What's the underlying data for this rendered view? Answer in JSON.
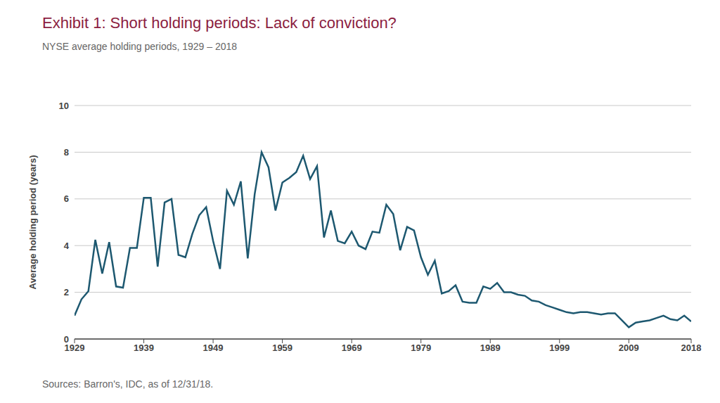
{
  "chart_data": {
    "type": "line",
    "title": "Exhibit 1: Short holding periods: Lack of conviction?",
    "subtitle": "NYSE average holding periods, 1929 – 2018",
    "y_label": "Average holding period (years)",
    "source": "Sources: Barron's, IDC, as of 12/31/18.",
    "x": [
      1929,
      1930,
      1931,
      1932,
      1933,
      1934,
      1935,
      1936,
      1937,
      1938,
      1939,
      1940,
      1941,
      1942,
      1943,
      1944,
      1945,
      1946,
      1947,
      1948,
      1949,
      1950,
      1951,
      1952,
      1953,
      1954,
      1955,
      1956,
      1957,
      1958,
      1959,
      1960,
      1961,
      1962,
      1963,
      1964,
      1965,
      1966,
      1967,
      1968,
      1969,
      1970,
      1971,
      1972,
      1973,
      1974,
      1975,
      1976,
      1977,
      1978,
      1979,
      1980,
      1981,
      1982,
      1983,
      1984,
      1985,
      1986,
      1987,
      1988,
      1989,
      1990,
      1991,
      1992,
      1993,
      1994,
      1995,
      1996,
      1997,
      1998,
      1999,
      2000,
      2001,
      2002,
      2003,
      2004,
      2005,
      2006,
      2007,
      2008,
      2009,
      2010,
      2011,
      2012,
      2013,
      2014,
      2015,
      2016,
      2017,
      2018
    ],
    "values": [
      1.0,
      1.7,
      2.05,
      4.25,
      2.8,
      4.15,
      2.25,
      2.2,
      3.9,
      3.9,
      6.05,
      6.05,
      3.1,
      5.85,
      6.0,
      3.6,
      3.5,
      4.5,
      5.3,
      5.65,
      4.2,
      3.0,
      6.35,
      5.75,
      6.75,
      3.45,
      6.2,
      8.0,
      7.35,
      5.5,
      6.7,
      6.9,
      7.15,
      7.85,
      6.85,
      7.4,
      4.35,
      5.5,
      4.2,
      4.1,
      4.6,
      4.0,
      3.85,
      4.6,
      4.55,
      5.75,
      5.35,
      3.8,
      4.8,
      4.65,
      3.5,
      2.75,
      3.35,
      1.95,
      2.05,
      2.3,
      1.6,
      1.55,
      1.55,
      2.25,
      2.15,
      2.4,
      2.0,
      2.0,
      1.9,
      1.85,
      1.65,
      1.6,
      1.45,
      1.35,
      1.25,
      1.15,
      1.1,
      1.15,
      1.15,
      1.1,
      1.05,
      1.1,
      1.1,
      0.8,
      0.5,
      0.7,
      0.75,
      0.8,
      0.9,
      1.0,
      0.85,
      0.8,
      1.0,
      0.75
    ],
    "color": "#1d5870",
    "xlim": [
      1929,
      2018
    ],
    "xticks": [
      1929,
      1939,
      1949,
      1959,
      1969,
      1979,
      1989,
      1999,
      2009,
      2018
    ],
    "ylim": [
      0,
      10
    ],
    "yticks": [
      0,
      2,
      4,
      6,
      8,
      10
    ],
    "grid": true
  }
}
